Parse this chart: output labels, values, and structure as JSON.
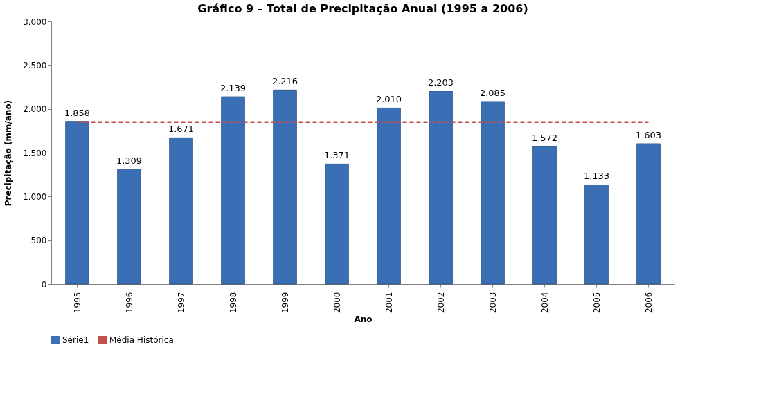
{
  "chart_data": {
    "type": "bar",
    "title": "Gráfico 9 – Total de Precipitação Anual (1995 a 2006)",
    "xlabel": "Ano",
    "ylabel": "Precipitação (mm/ano)",
    "categories": [
      "1995",
      "1996",
      "1997",
      "1998",
      "1999",
      "2000",
      "2001",
      "2002",
      "2003",
      "2004",
      "2005",
      "2006"
    ],
    "series": [
      {
        "name": "Série1",
        "color": "#3a6fb5",
        "values": [
          1858,
          1309,
          1671,
          2139,
          2216,
          1371,
          2010,
          2203,
          2085,
          1572,
          1133,
          1603
        ],
        "value_labels": [
          "1.858",
          "1.309",
          "1.671",
          "2.139",
          "2.216",
          "1.371",
          "2.010",
          "2.203",
          "2.085",
          "1.572",
          "1.133",
          "1.603"
        ]
      },
      {
        "name": "Média Histórica",
        "type": "line",
        "color": "#c0504d",
        "line_style": "dashed",
        "values": [
          1850,
          1850,
          1850,
          1850,
          1850,
          1850,
          1850,
          1850,
          1850,
          1850,
          1850,
          1850
        ]
      }
    ],
    "ylim": [
      0,
      3000
    ],
    "yticks": [
      {
        "value": 0,
        "label": "0"
      },
      {
        "value": 500,
        "label": "500"
      },
      {
        "value": 1000,
        "label": "1.000"
      },
      {
        "value": 1500,
        "label": "1.500"
      },
      {
        "value": 2000,
        "label": "2.000"
      },
      {
        "value": 2500,
        "label": "2.500"
      },
      {
        "value": 3000,
        "label": "3.000"
      }
    ],
    "grid": false,
    "legend": "bottom"
  }
}
